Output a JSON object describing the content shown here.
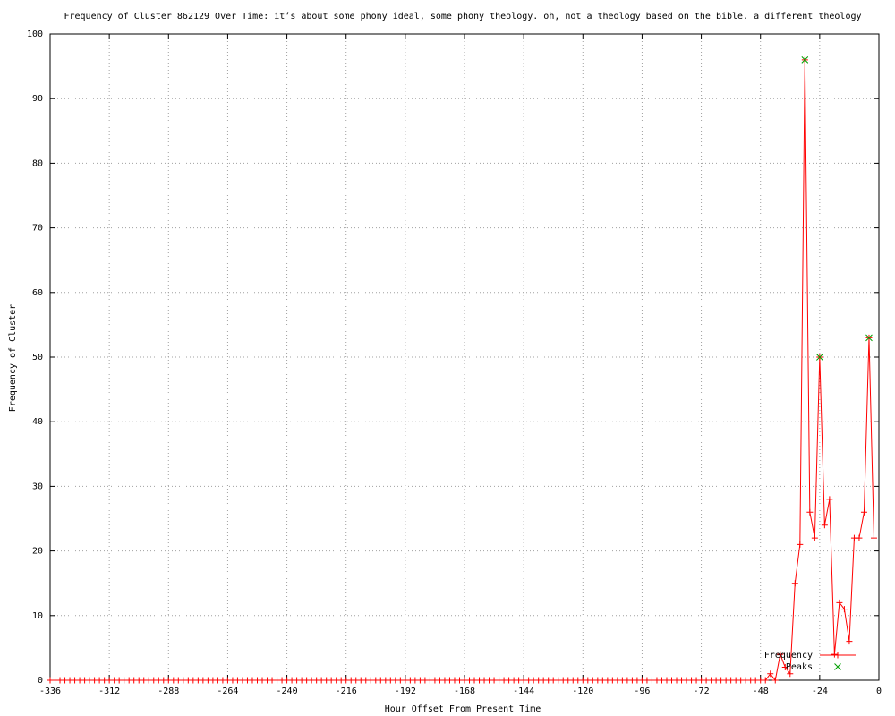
{
  "chart_data": {
    "type": "line",
    "title": "Frequency of Cluster 862129 Over Time: it’s about some phony ideal, some phony theology. oh, not a theology based on the bible. a different theology",
    "x_label": "Hour Offset From Present Time",
    "y_label": "Frequency of Cluster",
    "x": [
      -336,
      -334,
      -332,
      -330,
      -328,
      -326,
      -324,
      -322,
      -320,
      -318,
      -316,
      -314,
      -312,
      -310,
      -308,
      -306,
      -304,
      -302,
      -300,
      -298,
      -296,
      -294,
      -292,
      -290,
      -288,
      -286,
      -284,
      -282,
      -280,
      -278,
      -276,
      -274,
      -272,
      -270,
      -268,
      -266,
      -264,
      -262,
      -260,
      -258,
      -256,
      -254,
      -252,
      -250,
      -248,
      -246,
      -244,
      -242,
      -240,
      -238,
      -236,
      -234,
      -232,
      -230,
      -228,
      -226,
      -224,
      -222,
      -220,
      -218,
      -216,
      -214,
      -212,
      -210,
      -208,
      -206,
      -204,
      -202,
      -200,
      -198,
      -196,
      -194,
      -192,
      -190,
      -188,
      -186,
      -184,
      -182,
      -180,
      -178,
      -176,
      -174,
      -172,
      -170,
      -168,
      -166,
      -164,
      -162,
      -160,
      -158,
      -156,
      -154,
      -152,
      -150,
      -148,
      -146,
      -144,
      -142,
      -140,
      -138,
      -136,
      -134,
      -132,
      -130,
      -128,
      -126,
      -124,
      -122,
      -120,
      -118,
      -116,
      -114,
      -112,
      -110,
      -108,
      -106,
      -104,
      -102,
      -100,
      -98,
      -96,
      -94,
      -92,
      -90,
      -88,
      -86,
      -84,
      -82,
      -80,
      -78,
      -76,
      -74,
      -72,
      -70,
      -68,
      -66,
      -64,
      -62,
      -60,
      -58,
      -56,
      -54,
      -52,
      -50,
      -48,
      -46,
      -44,
      -42,
      -40,
      -38,
      -36,
      -34,
      -32,
      -30,
      -28,
      -26,
      -24,
      -22,
      -20,
      -18,
      -16,
      -14,
      -12,
      -10,
      -8,
      -6,
      -4,
      -2
    ],
    "series": [
      {
        "name": "Frequency",
        "color": "#ff0000",
        "marker": "plus",
        "values": [
          0,
          0,
          0,
          0,
          0,
          0,
          0,
          0,
          0,
          0,
          0,
          0,
          0,
          0,
          0,
          0,
          0,
          0,
          0,
          0,
          0,
          0,
          0,
          0,
          0,
          0,
          0,
          0,
          0,
          0,
          0,
          0,
          0,
          0,
          0,
          0,
          0,
          0,
          0,
          0,
          0,
          0,
          0,
          0,
          0,
          0,
          0,
          0,
          0,
          0,
          0,
          0,
          0,
          0,
          0,
          0,
          0,
          0,
          0,
          0,
          0,
          0,
          0,
          0,
          0,
          0,
          0,
          0,
          0,
          0,
          0,
          0,
          0,
          0,
          0,
          0,
          0,
          0,
          0,
          0,
          0,
          0,
          0,
          0,
          0,
          0,
          0,
          0,
          0,
          0,
          0,
          0,
          0,
          0,
          0,
          0,
          0,
          0,
          0,
          0,
          0,
          0,
          0,
          0,
          0,
          0,
          0,
          0,
          0,
          0,
          0,
          0,
          0,
          0,
          0,
          0,
          0,
          0,
          0,
          0,
          0,
          0,
          0,
          0,
          0,
          0,
          0,
          0,
          0,
          0,
          0,
          0,
          0,
          0,
          0,
          0,
          0,
          0,
          0,
          0,
          0,
          0,
          0,
          0,
          0,
          0,
          1,
          0,
          4,
          2,
          1,
          15,
          21,
          96,
          26,
          22,
          50,
          24,
          28,
          4,
          12,
          11,
          6,
          22,
          22,
          26,
          53,
          22
        ]
      },
      {
        "name": "Peaks",
        "color": "#00a000",
        "marker": "cross",
        "x": [
          -30,
          -24,
          -4
        ],
        "values": [
          96,
          50,
          53
        ]
      }
    ],
    "xlim": [
      -336,
      0
    ],
    "xticks": [
      -336,
      -312,
      -288,
      -264,
      -240,
      -216,
      -192,
      -168,
      -144,
      -120,
      -96,
      -72,
      -48,
      -24,
      0
    ],
    "ylim": [
      0,
      100
    ],
    "yticks": [
      0,
      10,
      20,
      30,
      40,
      50,
      60,
      70,
      80,
      90,
      100
    ],
    "grid": true,
    "legend": "bottom-right"
  }
}
